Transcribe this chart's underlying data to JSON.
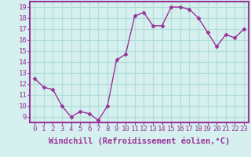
{
  "x": [
    0,
    1,
    2,
    3,
    4,
    5,
    6,
    7,
    8,
    9,
    10,
    11,
    12,
    13,
    14,
    15,
    16,
    17,
    18,
    19,
    20,
    21,
    22,
    23
  ],
  "y": [
    12.5,
    11.7,
    11.5,
    10.0,
    9.0,
    9.5,
    9.3,
    8.7,
    10.0,
    14.2,
    14.7,
    18.2,
    18.5,
    17.3,
    17.3,
    19.0,
    19.0,
    18.8,
    18.0,
    16.7,
    15.4,
    16.5,
    16.2,
    17.0
  ],
  "line_color": "#993399",
  "marker": "D",
  "marker_size": 2.5,
  "bg_color": "#d5f0ee",
  "plot_bg": "#d5f0ee",
  "grid_color": "#b0ddd9",
  "spine_color": "#993399",
  "xlabel": "Windchill (Refroidissement éolien,°C)",
  "ylim": [
    8.5,
    19.5
  ],
  "xlim": [
    -0.5,
    23.5
  ],
  "yticks": [
    9,
    10,
    11,
    12,
    13,
    14,
    15,
    16,
    17,
    18,
    19
  ],
  "xticks": [
    0,
    1,
    2,
    3,
    4,
    5,
    6,
    7,
    8,
    9,
    10,
    11,
    12,
    13,
    14,
    15,
    16,
    17,
    18,
    19,
    20,
    21,
    22,
    23
  ],
  "tick_label_fontsize": 6.5,
  "xlabel_fontsize": 7.5,
  "line_width": 1.0
}
